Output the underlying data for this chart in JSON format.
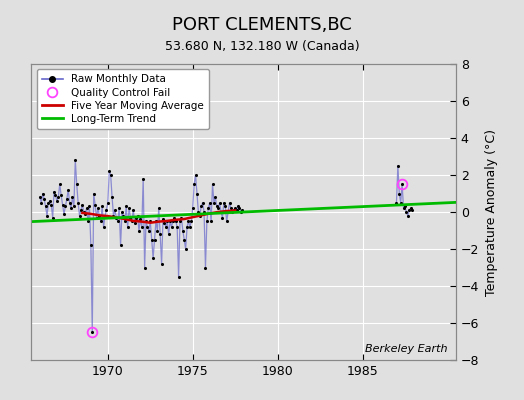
{
  "title": "PORT CLEMENTS,BC",
  "subtitle": "53.680 N, 132.180 W (Canada)",
  "ylabel": "Temperature Anomaly (°C)",
  "credit": "Berkeley Earth",
  "ylim": [
    -8,
    8
  ],
  "xlim": [
    1965.5,
    1990.5
  ],
  "xticks": [
    1970,
    1975,
    1980,
    1985
  ],
  "yticks": [
    -8,
    -6,
    -4,
    -2,
    0,
    2,
    4,
    6,
    8
  ],
  "bg_color": "#e0e0e0",
  "plot_bg_color": "#e0e0e0",
  "grid_color": "#ffffff",
  "raw_color": "#6666cc",
  "raw_alpha": 0.7,
  "marker_color": "#000000",
  "qc_fail_color": "#ff44ff",
  "moving_avg_color": "#cc0000",
  "trend_color": "#00bb00",
  "raw_monthly_seg1": [
    [
      1966.0,
      0.8
    ],
    [
      1966.083,
      0.5
    ],
    [
      1966.167,
      1.0
    ],
    [
      1966.25,
      0.7
    ],
    [
      1966.333,
      0.3
    ],
    [
      1966.417,
      -0.2
    ],
    [
      1966.5,
      0.5
    ],
    [
      1966.583,
      0.6
    ],
    [
      1966.667,
      0.4
    ],
    [
      1966.75,
      -0.3
    ],
    [
      1966.833,
      1.1
    ],
    [
      1966.917,
      0.9
    ],
    [
      1967.0,
      0.6
    ],
    [
      1967.083,
      0.8
    ],
    [
      1967.167,
      1.5
    ],
    [
      1967.25,
      0.9
    ],
    [
      1967.333,
      0.4
    ],
    [
      1967.417,
      -0.1
    ],
    [
      1967.5,
      0.3
    ],
    [
      1967.583,
      0.7
    ],
    [
      1967.667,
      1.2
    ],
    [
      1967.75,
      0.5
    ],
    [
      1967.833,
      0.2
    ],
    [
      1967.917,
      0.8
    ],
    [
      1968.0,
      0.3
    ],
    [
      1968.083,
      2.8
    ],
    [
      1968.167,
      1.5
    ],
    [
      1968.25,
      0.5
    ],
    [
      1968.333,
      -0.2
    ],
    [
      1968.417,
      0.1
    ],
    [
      1968.5,
      0.4
    ],
    [
      1968.583,
      0.0
    ],
    [
      1968.667,
      -0.1
    ],
    [
      1968.75,
      0.2
    ],
    [
      1968.833,
      -0.5
    ],
    [
      1968.917,
      0.3
    ],
    [
      1969.0,
      -1.8
    ],
    [
      1969.083,
      -6.5
    ],
    [
      1969.167,
      1.0
    ],
    [
      1969.25,
      0.4
    ],
    [
      1969.333,
      -0.3
    ],
    [
      1969.417,
      0.2
    ],
    [
      1969.5,
      -0.2
    ],
    [
      1969.583,
      -0.5
    ],
    [
      1969.667,
      0.3
    ],
    [
      1969.75,
      -0.8
    ],
    [
      1969.833,
      -0.2
    ],
    [
      1969.917,
      0.1
    ],
    [
      1970.0,
      0.5
    ],
    [
      1970.083,
      2.2
    ],
    [
      1970.167,
      2.0
    ],
    [
      1970.25,
      0.8
    ],
    [
      1970.333,
      -0.2
    ],
    [
      1970.417,
      0.1
    ],
    [
      1970.5,
      -0.3
    ],
    [
      1970.583,
      -0.5
    ],
    [
      1970.667,
      0.2
    ],
    [
      1970.75,
      -1.8
    ],
    [
      1970.833,
      0.0
    ],
    [
      1970.917,
      -0.2
    ],
    [
      1971.0,
      -0.5
    ],
    [
      1971.083,
      0.3
    ],
    [
      1971.167,
      -0.8
    ],
    [
      1971.25,
      0.2
    ],
    [
      1971.333,
      -0.3
    ],
    [
      1971.417,
      -0.5
    ],
    [
      1971.5,
      0.1
    ],
    [
      1971.583,
      -0.6
    ],
    [
      1971.667,
      -0.3
    ],
    [
      1971.75,
      -0.2
    ],
    [
      1971.833,
      -1.0
    ],
    [
      1971.917,
      -0.4
    ],
    [
      1972.0,
      -0.8
    ],
    [
      1972.083,
      1.8
    ],
    [
      1972.167,
      -3.0
    ],
    [
      1972.25,
      -0.5
    ],
    [
      1972.333,
      -0.8
    ],
    [
      1972.417,
      -1.0
    ],
    [
      1972.5,
      -0.5
    ],
    [
      1972.583,
      -1.5
    ],
    [
      1972.667,
      -2.5
    ],
    [
      1972.75,
      -1.5
    ],
    [
      1972.833,
      -0.5
    ],
    [
      1972.917,
      -1.0
    ],
    [
      1973.0,
      0.2
    ],
    [
      1973.083,
      -1.2
    ],
    [
      1973.167,
      -2.8
    ],
    [
      1973.25,
      -0.4
    ],
    [
      1973.333,
      -0.6
    ],
    [
      1973.417,
      -0.8
    ],
    [
      1973.5,
      -0.5
    ],
    [
      1973.583,
      -1.2
    ],
    [
      1973.667,
      -0.5
    ],
    [
      1973.75,
      -0.8
    ],
    [
      1973.833,
      -0.5
    ],
    [
      1973.917,
      -0.3
    ],
    [
      1974.0,
      -0.5
    ],
    [
      1974.083,
      -0.8
    ],
    [
      1974.167,
      -3.5
    ],
    [
      1974.25,
      -0.5
    ],
    [
      1974.333,
      -0.3
    ],
    [
      1974.417,
      -1.0
    ],
    [
      1974.5,
      -1.5
    ],
    [
      1974.583,
      -2.0
    ],
    [
      1974.667,
      -0.8
    ],
    [
      1974.75,
      -0.5
    ],
    [
      1974.833,
      -0.8
    ],
    [
      1974.917,
      -0.5
    ],
    [
      1975.0,
      0.2
    ],
    [
      1975.083,
      1.5
    ],
    [
      1975.167,
      2.0
    ],
    [
      1975.25,
      1.0
    ],
    [
      1975.333,
      0.0
    ],
    [
      1975.417,
      -0.2
    ],
    [
      1975.5,
      0.3
    ],
    [
      1975.583,
      0.5
    ],
    [
      1975.667,
      0.0
    ],
    [
      1975.75,
      -3.0
    ],
    [
      1975.833,
      -0.5
    ],
    [
      1975.917,
      0.2
    ],
    [
      1976.0,
      0.5
    ],
    [
      1976.083,
      -0.5
    ],
    [
      1976.167,
      1.5
    ],
    [
      1976.25,
      0.5
    ],
    [
      1976.333,
      0.8
    ],
    [
      1976.417,
      0.3
    ],
    [
      1976.5,
      0.2
    ],
    [
      1976.583,
      0.5
    ],
    [
      1976.667,
      0.0
    ],
    [
      1976.75,
      -0.3
    ],
    [
      1976.833,
      0.5
    ],
    [
      1976.917,
      0.3
    ],
    [
      1977.0,
      -0.5
    ],
    [
      1977.083,
      0.0
    ],
    [
      1977.167,
      0.5
    ],
    [
      1977.25,
      0.2
    ],
    [
      1977.333,
      0.0
    ],
    [
      1977.417,
      0.1
    ],
    [
      1977.5,
      0.2
    ],
    [
      1977.583,
      0.1
    ],
    [
      1977.667,
      0.3
    ],
    [
      1977.75,
      0.2
    ],
    [
      1977.833,
      0.0
    ],
    [
      1977.917,
      0.1
    ]
  ],
  "raw_monthly_seg2": [
    [
      1987.0,
      0.5
    ],
    [
      1987.083,
      2.5
    ],
    [
      1987.167,
      1.0
    ],
    [
      1987.25,
      0.5
    ],
    [
      1987.333,
      1.5
    ],
    [
      1987.417,
      0.2
    ],
    [
      1987.5,
      0.3
    ],
    [
      1987.583,
      0.0
    ],
    [
      1987.667,
      -0.2
    ],
    [
      1987.75,
      0.1
    ],
    [
      1987.833,
      0.2
    ],
    [
      1987.917,
      0.1
    ]
  ],
  "qc_fail_points": [
    [
      1969.083,
      -6.5
    ],
    [
      1987.333,
      1.5
    ]
  ],
  "moving_avg": [
    [
      1968.5,
      -0.05
    ],
    [
      1969.0,
      -0.1
    ],
    [
      1969.5,
      -0.18
    ],
    [
      1970.0,
      -0.22
    ],
    [
      1970.5,
      -0.3
    ],
    [
      1971.0,
      -0.38
    ],
    [
      1971.5,
      -0.48
    ],
    [
      1972.0,
      -0.52
    ],
    [
      1972.5,
      -0.58
    ],
    [
      1973.0,
      -0.52
    ],
    [
      1973.5,
      -0.48
    ],
    [
      1974.0,
      -0.42
    ],
    [
      1974.5,
      -0.38
    ],
    [
      1975.0,
      -0.28
    ],
    [
      1975.5,
      -0.18
    ],
    [
      1976.0,
      -0.08
    ],
    [
      1976.5,
      0.0
    ],
    [
      1977.0,
      0.05
    ],
    [
      1977.5,
      0.08
    ]
  ],
  "trend_line": [
    [
      1965.5,
      -0.52
    ],
    [
      1990.5,
      0.52
    ]
  ]
}
